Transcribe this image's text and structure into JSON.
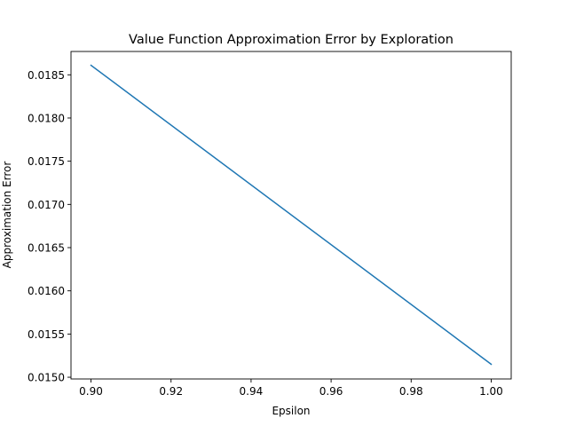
{
  "chart_data": {
    "type": "line",
    "title": "Value Function Approximation Error by Exploration",
    "xlabel": "Epsilon",
    "ylabel": "Approximation Error",
    "xlim": [
      0.895,
      1.005
    ],
    "ylim": [
      0.01498,
      0.01877
    ],
    "x_ticks": [
      0.9,
      0.92,
      0.94,
      0.96,
      0.98,
      1.0
    ],
    "y_ticks": [
      0.015,
      0.0155,
      0.016,
      0.0165,
      0.017,
      0.0175,
      0.018,
      0.0185
    ],
    "x_tick_labels": [
      "0.90",
      "0.92",
      "0.94",
      "0.96",
      "0.98",
      "1.00"
    ],
    "y_tick_labels": [
      "0.0150",
      "0.0155",
      "0.0160",
      "0.0165",
      "0.0170",
      "0.0175",
      "0.0180",
      "0.0185"
    ],
    "grid": false,
    "series": [
      {
        "color": "#1f77b4",
        "x": [
          0.9,
          1.0
        ],
        "y": [
          0.01861,
          0.01515
        ]
      }
    ]
  }
}
